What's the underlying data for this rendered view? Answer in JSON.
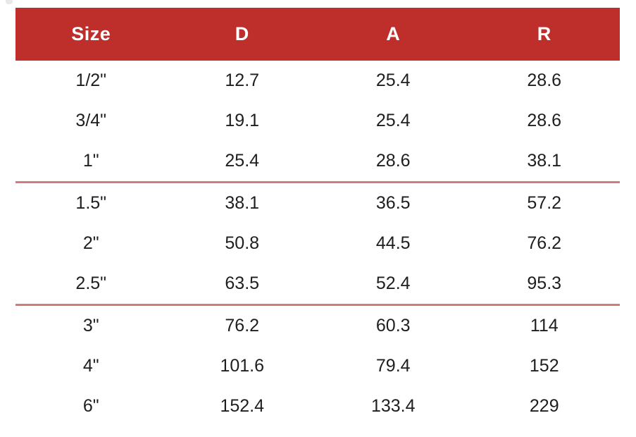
{
  "colors": {
    "header_background": "#be2f2b",
    "header_text": "#ffffff",
    "body_text": "#1e1e1e",
    "group_separator": "#d17b7b",
    "page_background": "#ffffff"
  },
  "table": {
    "columns": [
      "Size",
      "D",
      "A",
      "R"
    ],
    "rows": [
      [
        "1/2\"",
        "12.7",
        "25.4",
        "28.6"
      ],
      [
        "3/4\"",
        "19.1",
        "25.4",
        "28.6"
      ],
      [
        "1\"",
        "25.4",
        "28.6",
        "38.1"
      ],
      [
        "1.5\"",
        "38.1",
        "36.5",
        "57.2"
      ],
      [
        "2\"",
        "50.8",
        "44.5",
        "76.2"
      ],
      [
        "2.5\"",
        "63.5",
        "52.4",
        "95.3"
      ],
      [
        "3\"",
        "76.2",
        "60.3",
        "114"
      ],
      [
        "4\"",
        "101.6",
        "79.4",
        "152"
      ],
      [
        "6\"",
        "152.4",
        "133.4",
        "229"
      ]
    ],
    "group_breaks_after_row_indexes": [
      2,
      5
    ]
  },
  "chart_data": {
    "type": "table",
    "title": "",
    "columns": [
      "Size",
      "D",
      "A",
      "R"
    ],
    "categories": [
      "1/2\"",
      "3/4\"",
      "1\"",
      "1.5\"",
      "2\"",
      "2.5\"",
      "3\"",
      "4\"",
      "6\""
    ],
    "series": [
      {
        "name": "D",
        "values": [
          12.7,
          19.1,
          25.4,
          38.1,
          50.8,
          63.5,
          76.2,
          101.6,
          152.4
        ]
      },
      {
        "name": "A",
        "values": [
          25.4,
          25.4,
          28.6,
          36.5,
          44.5,
          52.4,
          60.3,
          79.4,
          133.4
        ]
      },
      {
        "name": "R",
        "values": [
          28.6,
          28.6,
          38.1,
          57.2,
          76.2,
          95.3,
          114,
          152,
          229
        ]
      }
    ],
    "layout_hints": {
      "header_fill": "#be2f2b",
      "group_separators_after_rows": [
        3,
        6
      ],
      "column_alignment": "center"
    }
  }
}
